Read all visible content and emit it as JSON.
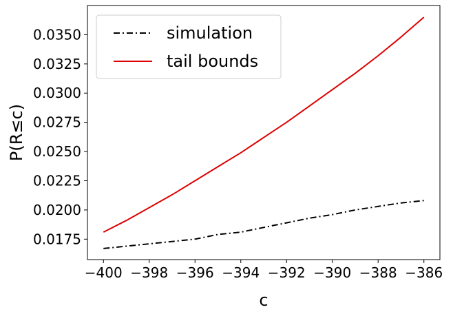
{
  "chart_data": {
    "type": "line",
    "xlabel": "c",
    "ylabel": "P(R≤c)",
    "xlim": [
      -400.7,
      -385.3
    ],
    "ylim": [
      0.01575,
      0.0375
    ],
    "x_ticks": [
      -400,
      -398,
      -396,
      -394,
      -392,
      -390,
      -388,
      -386
    ],
    "x_tick_labels": [
      "−400",
      "−398",
      "−396",
      "−394",
      "−392",
      "−390",
      "−388",
      "−386"
    ],
    "y_ticks": [
      0.0175,
      0.02,
      0.0225,
      0.025,
      0.0275,
      0.03,
      0.0325,
      0.035
    ],
    "y_tick_labels": [
      "0.0175",
      "0.0200",
      "0.0225",
      "0.0250",
      "0.0275",
      "0.0300",
      "0.0325",
      "0.0350"
    ],
    "legend_position": "top-left",
    "grid": false,
    "series": [
      {
        "name": "simulation",
        "color": "#000000",
        "style": "dashdot",
        "x": [
          -400,
          -399,
          -398,
          -397,
          -396,
          -395,
          -394,
          -393,
          -392,
          -391,
          -390,
          -389,
          -388,
          -387,
          -386
        ],
        "values": [
          0.0167,
          0.0169,
          0.0171,
          0.0173,
          0.0175,
          0.0179,
          0.0181,
          0.0185,
          0.0189,
          0.0193,
          0.0196,
          0.02,
          0.0203,
          0.0206,
          0.0208
        ]
      },
      {
        "name": "tail bounds",
        "color": "#dd0000",
        "style": "solid",
        "x": [
          -400,
          -399,
          -398,
          -397,
          -396,
          -395,
          -394,
          -393,
          -392,
          -391,
          -390,
          -389,
          -388,
          -387,
          -386
        ],
        "values": [
          0.0181,
          0.0191,
          0.0202,
          0.0213,
          0.0225,
          0.0237,
          0.0249,
          0.0262,
          0.0275,
          0.0289,
          0.0303,
          0.0317,
          0.0332,
          0.0348,
          0.0365
        ]
      }
    ]
  }
}
